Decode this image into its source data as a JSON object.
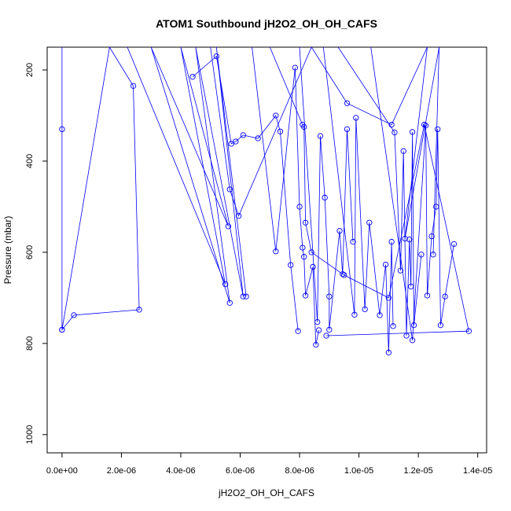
{
  "chart_data": {
    "type": "line",
    "title": "ATOM1 Southbound jH2O2_OH_OH_CAFS",
    "xlabel": "jH2O2_OH_OH_CAFS",
    "ylabel": "Pressure (mbar)",
    "xlim": [
      -5e-07,
      1.43e-05
    ],
    "ylim": [
      1040,
      150
    ],
    "x_ticks": [
      0,
      2e-06,
      4e-06,
      6e-06,
      8e-06,
      1e-05,
      1.2e-05,
      1.4e-05
    ],
    "x_tick_labels": [
      "0.0e+00",
      "2.0e-06",
      "4.0e-06",
      "6.0e-06",
      "8.0e-06",
      "1.0e-05",
      "1.2e-05",
      "1.4e-05"
    ],
    "y_ticks": [
      200,
      400,
      600,
      800,
      1000
    ],
    "y_tick_labels": [
      "200",
      "400",
      "600",
      "800",
      "1000"
    ],
    "grid": false,
    "legend": "none",
    "marker": "open-circle",
    "series_color": "#0000ff",
    "series": [
      {
        "x": [
          0,
          0,
          0,
          4e-07,
          2.6e-06,
          2.4e-06,
          1.6e-06,
          0,
          0
        ],
        "y": [
          150,
          330,
          770,
          738,
          726,
          235,
          150,
          770,
          150
        ]
      },
      {
        "x": [
          2.2e-06,
          5.5e-06,
          4e-06,
          5.6e-06,
          3e-06,
          5.65e-06,
          4.5e-06,
          6.1e-06,
          5.2e-06,
          6.2e-06
        ],
        "y": [
          150,
          670,
          150,
          543,
          150,
          711,
          150,
          697,
          150,
          697
        ]
      },
      {
        "x": [
          4.4e-06,
          5.2e-06,
          5.7e-06,
          5.85e-06,
          6.1e-06,
          6.6e-06,
          7.2e-06,
          7.35e-06,
          7.7e-06,
          7.95e-06
        ],
        "y": [
          215,
          170,
          362,
          357,
          343,
          350,
          300,
          335,
          628,
          773
        ]
      },
      {
        "x": [
          6.4e-06,
          7.2e-06,
          7.85e-06,
          8e-06,
          8.1e-06,
          8.15e-06,
          8.2e-06,
          8.45e-06,
          8.55e-06,
          8.65e-06
        ],
        "y": [
          150,
          598,
          195,
          500,
          590,
          610,
          695,
          632,
          803,
          771
        ]
      },
      {
        "x": [
          8e-06,
          8.6e-06,
          8.7e-06,
          8.85e-06,
          9e-06,
          9e-06,
          9.35e-06,
          9.45e-06,
          9.6e-06,
          9.8e-06
        ],
        "y": [
          150,
          753,
          345,
          480,
          697,
          770,
          553,
          648,
          330,
          577
        ]
      },
      {
        "x": [
          8.8e-06,
          9.85e-06,
          9.9e-06,
          1.02e-05,
          1.035e-05,
          1.07e-05,
          1.09e-05,
          1.1e-05,
          1.11e-05,
          1.115e-05
        ],
        "y": [
          150,
          737,
          305,
          725,
          535,
          738,
          627,
          820,
          577,
          762
        ]
      },
      {
        "x": [
          9.3e-06,
          1.12e-05,
          1.14e-05,
          1.15e-05,
          1.16e-05,
          1.17e-05,
          1.175e-05,
          1.18e-05,
          1.185e-05,
          1.21e-05
        ],
        "y": [
          150,
          337,
          640,
          378,
          783,
          572,
          675,
          336,
          760,
          605
        ]
      },
      {
        "x": [
          1.04e-05,
          1.18e-05,
          1.225e-05,
          1.23e-05,
          1.245e-05,
          1.26e-05,
          1.265e-05,
          1.275e-05,
          1.29e-05,
          1.32e-05
        ],
        "y": [
          150,
          793,
          322,
          695,
          565,
          500,
          330,
          760,
          697,
          582
        ]
      },
      {
        "x": [
          7e-06,
          8.1e-06,
          8.15e-06,
          8.2e-06,
          8.4e-06,
          9.5e-06,
          1.1e-05,
          1.22e-05,
          1.37e-05,
          8.9e-06
        ],
        "y": [
          150,
          320,
          325,
          535,
          600,
          650,
          700,
          320,
          773,
          783
        ]
      },
      {
        "x": [
          5e-06,
          5.65e-06,
          5.95e-06,
          8.4e-06,
          9.6e-06,
          1.11e-05,
          1.23e-05,
          1.155e-05,
          1.27e-05,
          1.25e-05
        ],
        "y": [
          150,
          462,
          520,
          150,
          273,
          320,
          150,
          570,
          150,
          605
        ]
      }
    ]
  }
}
